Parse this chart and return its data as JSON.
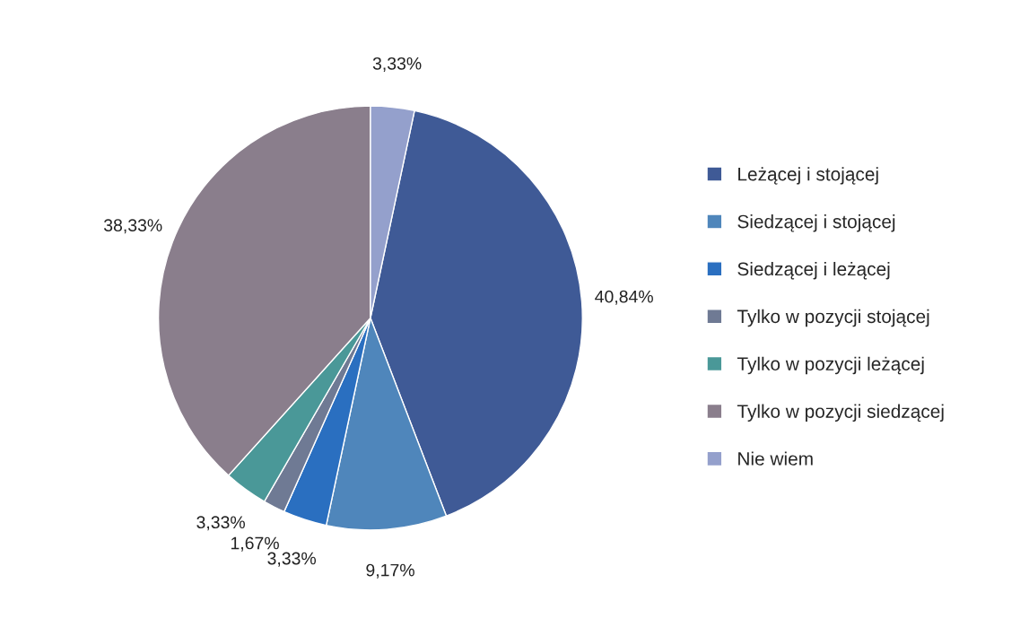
{
  "chart_data": {
    "type": "pie",
    "categories": [
      "Leżącej i stojącej",
      "Siedzącej i stojącej",
      "Siedzącej i leżącej",
      "Tylko w pozycji stojącej",
      "Tylko w pozycji leżącej",
      "Tylko w pozycji siedzącej",
      "Nie wiem"
    ],
    "values": [
      40.84,
      9.17,
      3.33,
      1.67,
      3.33,
      38.33,
      3.33
    ],
    "value_labels": [
      "40,84%",
      "9,17%",
      "3,33%",
      "1,67%",
      "3,33%",
      "38,33%",
      "3,33%"
    ],
    "colors": [
      "#3f5a96",
      "#4f86bb",
      "#2a6fc0",
      "#6f7a94",
      "#4a9898",
      "#8a7e8c",
      "#94a0cc"
    ],
    "legend": "right"
  }
}
